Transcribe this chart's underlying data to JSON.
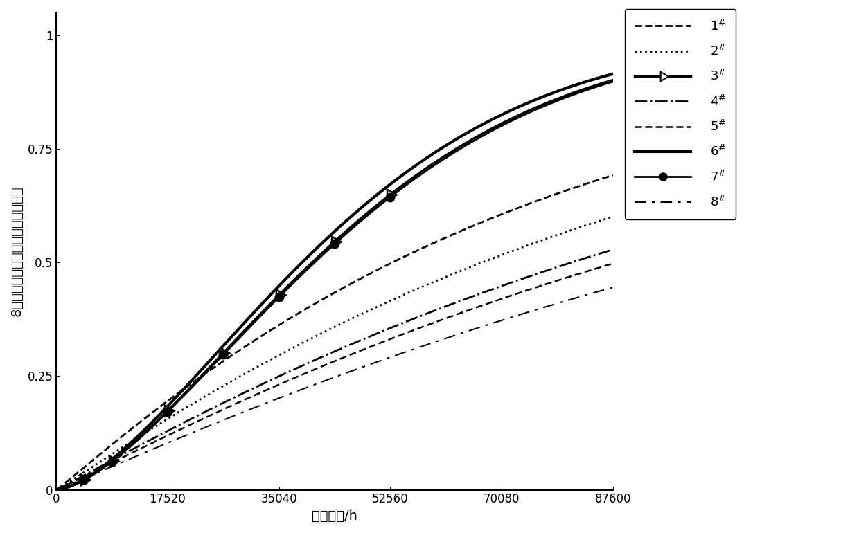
{
  "title": "",
  "xlabel": "运行时间/h",
  "ylabel": "8台机组齿轮箱轴承竞争失效概率率",
  "xlim": [
    0,
    87600
  ],
  "ylim": [
    0,
    1.05
  ],
  "xticks": [
    0,
    17520,
    35040,
    52560,
    70080,
    87600
  ],
  "yticks": [
    0,
    0.25,
    0.5,
    0.75,
    1.0
  ],
  "color": "#000000",
  "background": "#ffffff",
  "legend_fontsize": 13,
  "axis_fontsize": 14,
  "tick_fontsize": 12,
  "curve_params": [
    {
      "label": "1#",
      "ls": "--",
      "lw": 2.0,
      "eta": 75000,
      "beta": 1.05,
      "marker": null,
      "at_87600": 0.93
    },
    {
      "label": "2#",
      "ls": ":",
      "lw": 2.0,
      "eta": 95000,
      "beta": 1.05,
      "marker": null,
      "at_87600": 0.86
    },
    {
      "label": "3#",
      "ls": "-",
      "lw": 2.5,
      "eta": 51000,
      "beta": 1.55,
      "marker": "tri",
      "at_87600": 1.0
    },
    {
      "label": "4#",
      "ls": "-.",
      "lw": 2.0,
      "eta": 115000,
      "beta": 1.05,
      "marker": null,
      "at_87600": 0.75
    },
    {
      "label": "5#",
      "ls": "d--",
      "lw": 1.8,
      "eta": 125000,
      "beta": 1.05,
      "marker": null,
      "at_87600": 0.79
    },
    {
      "label": "6#",
      "ls": "-",
      "lw": 3.0,
      "eta": 49000,
      "beta": 1.55,
      "marker": null,
      "at_87600": 1.0
    },
    {
      "label": "7#",
      "ls": "-",
      "lw": 2.0,
      "eta": 51500,
      "beta": 1.55,
      "marker": "dot",
      "at_87600": 1.0
    },
    {
      "label": "8#",
      "ls": "d-.",
      "lw": 1.5,
      "eta": 145000,
      "beta": 1.05,
      "marker": null,
      "at_87600": 0.65
    }
  ],
  "marker_times": [
    4380,
    8760,
    17520,
    26280,
    35040,
    43800,
    52560
  ]
}
